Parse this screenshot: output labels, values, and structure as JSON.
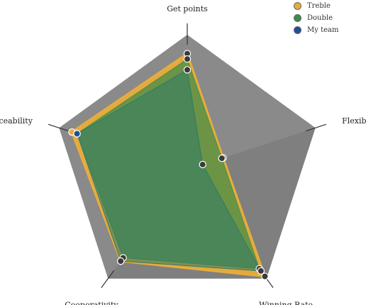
{
  "chart_data": {
    "type": "radar",
    "axes": [
      "Get points",
      "Flexibility",
      "Winning Rate",
      "Cooperativity",
      "Replaceability"
    ],
    "max": 100,
    "series": [
      {
        "name": "Treble",
        "color": "#e8ac3c",
        "values": [
          86,
          28,
          98,
          84,
          90
        ]
      },
      {
        "name": "Double",
        "color": "#3e8a4a",
        "values": [
          82,
          27,
          91,
          81,
          86
        ]
      },
      {
        "name": "My team",
        "color": "#1f4f9a",
        "values": [
          74,
          12,
          93,
          84,
          86
        ]
      }
    ],
    "legend_position": "top-right",
    "colors": {
      "outer_polygon": "#8a8a8a",
      "outer_polygon_dark": "#767676",
      "axis_line": "#333333",
      "marker_fill": "#3b3b3b",
      "marker_stroke": "#ffffff"
    }
  }
}
